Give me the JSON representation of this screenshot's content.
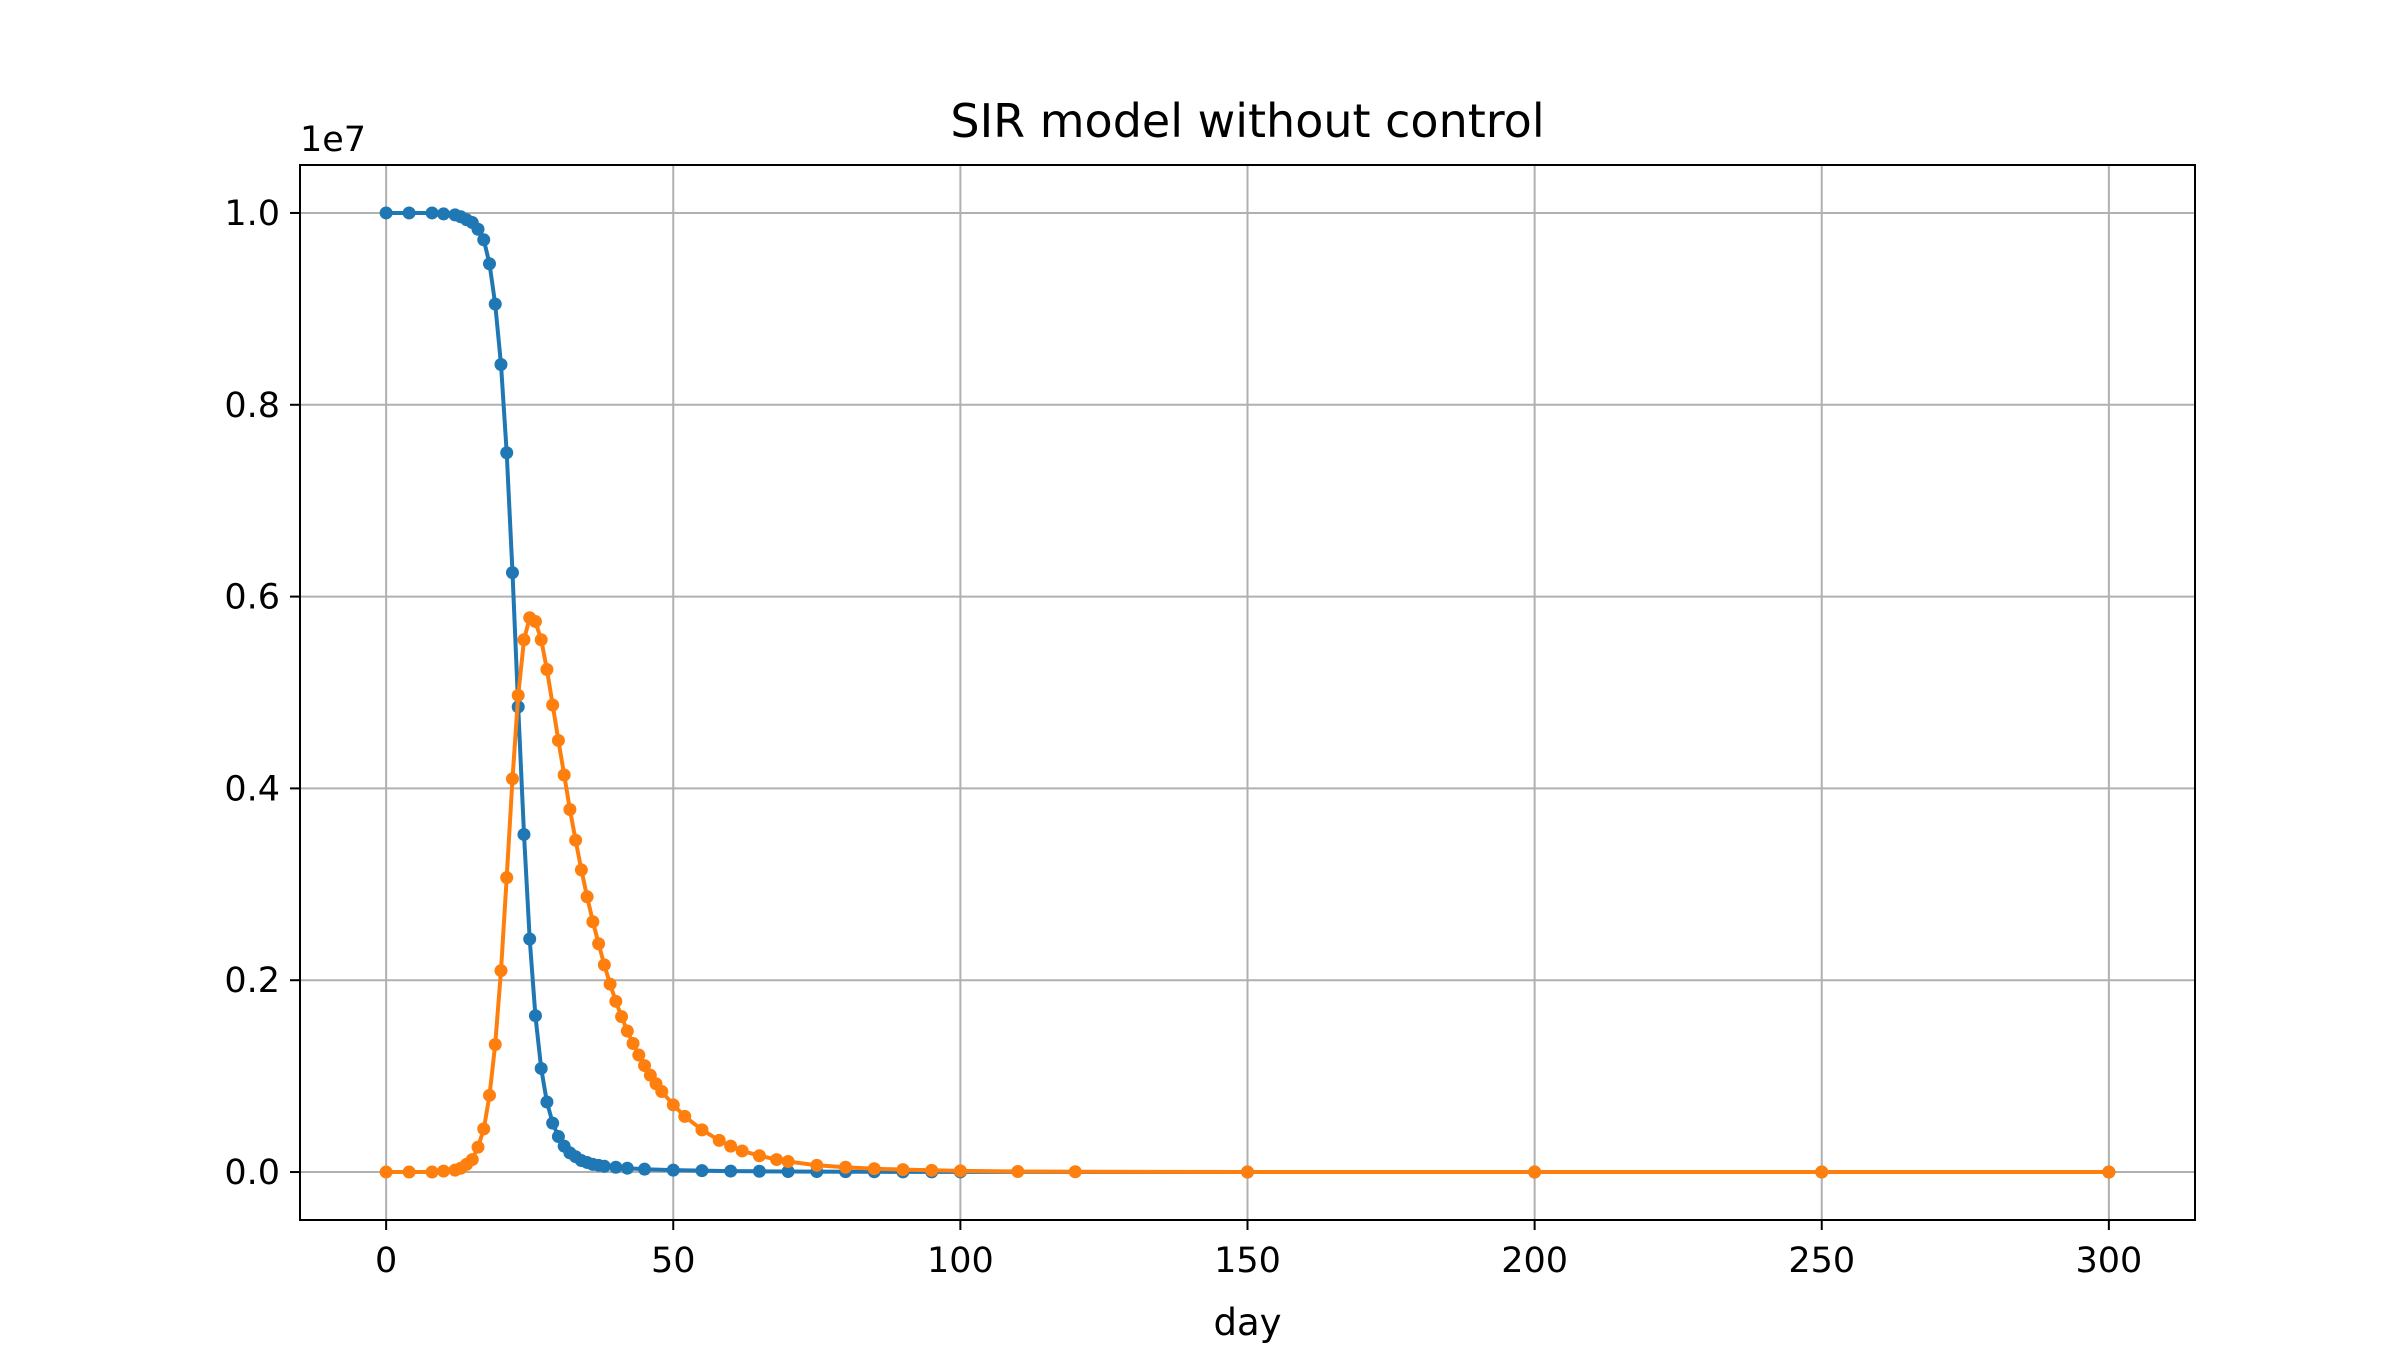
{
  "chart_data": {
    "type": "line",
    "title": "SIR model without control",
    "xlabel": "day",
    "ylabel": "",
    "y_scale_label": "1e7",
    "xlim": [
      -15,
      315
    ],
    "ylim": [
      -0.05,
      1.05
    ],
    "xticks": [
      0,
      50,
      100,
      150,
      200,
      250,
      300
    ],
    "yticks": [
      0.0,
      0.2,
      0.4,
      0.6,
      0.8,
      1.0
    ],
    "xtick_labels": [
      "0",
      "50",
      "100",
      "150",
      "200",
      "250",
      "300"
    ],
    "ytick_labels": [
      "0.0",
      "0.2",
      "0.4",
      "0.6",
      "0.8",
      "1.0"
    ],
    "grid": true,
    "legend": "none",
    "series": [
      {
        "color": "#1f77b4",
        "marker": "dot",
        "x": [
          0,
          4,
          8,
          10,
          12,
          13,
          14,
          15,
          16,
          17,
          18,
          19,
          20,
          21,
          22,
          23,
          24,
          25,
          26,
          27,
          28,
          29,
          30,
          31,
          32,
          33,
          34,
          35,
          36,
          37,
          38,
          40,
          42,
          45,
          50,
          55,
          60,
          65,
          70,
          75,
          80,
          85,
          90,
          95,
          100,
          150,
          200,
          250,
          300
        ],
        "y": [
          1.0,
          1.0,
          1.0,
          0.999,
          0.998,
          0.996,
          0.993,
          0.99,
          0.983,
          0.972,
          0.947,
          0.905,
          0.842,
          0.75,
          0.625,
          0.485,
          0.352,
          0.243,
          0.163,
          0.108,
          0.073,
          0.051,
          0.037,
          0.027,
          0.02,
          0.016,
          0.012,
          0.01,
          0.008,
          0.007,
          0.006,
          0.005,
          0.004,
          0.003,
          0.002,
          0.0015,
          0.001,
          0.0008,
          0.0006,
          0.0005,
          0.0004,
          0.0003,
          0.0002,
          0.0002,
          0.0001,
          0.0,
          0.0,
          0.0,
          0.0
        ]
      },
      {
        "color": "#ff7f0e",
        "marker": "dot",
        "x": [
          0,
          4,
          8,
          10,
          12,
          13,
          14,
          15,
          16,
          17,
          18,
          19,
          20,
          21,
          22,
          23,
          24,
          25,
          26,
          27,
          28,
          29,
          30,
          31,
          32,
          33,
          34,
          35,
          36,
          37,
          38,
          39,
          40,
          41,
          42,
          43,
          44,
          45,
          46,
          47,
          48,
          50,
          52,
          55,
          58,
          60,
          62,
          65,
          68,
          70,
          75,
          80,
          85,
          90,
          95,
          100,
          110,
          120,
          150,
          200,
          250,
          300
        ],
        "y": [
          0.0,
          0.0,
          0.0,
          0.001,
          0.002,
          0.004,
          0.008,
          0.013,
          0.026,
          0.045,
          0.08,
          0.133,
          0.21,
          0.307,
          0.41,
          0.497,
          0.555,
          0.578,
          0.574,
          0.555,
          0.524,
          0.487,
          0.45,
          0.414,
          0.378,
          0.346,
          0.315,
          0.287,
          0.261,
          0.238,
          0.216,
          0.196,
          0.178,
          0.162,
          0.147,
          0.134,
          0.122,
          0.111,
          0.101,
          0.092,
          0.084,
          0.07,
          0.058,
          0.044,
          0.033,
          0.027,
          0.022,
          0.017,
          0.013,
          0.011,
          0.007,
          0.005,
          0.0035,
          0.0025,
          0.0018,
          0.0012,
          0.0006,
          0.0003,
          0.0,
          0.0,
          0.0,
          0.0
        ]
      }
    ]
  }
}
